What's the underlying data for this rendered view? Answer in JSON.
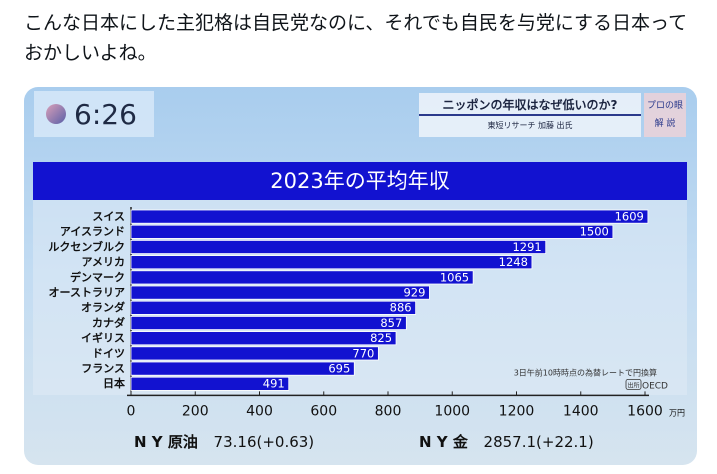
{
  "tweet": {
    "text": "こんな日本にした主犯格は自民党なのに、それでも自民を与党にする日本っておかしいよね。"
  },
  "tv": {
    "time": "6:26",
    "headline": "ニッポンの年収はなぜ低いのか?",
    "guest": "東短リサーチ 加藤 出氏",
    "badge_line1": "プロの眼",
    "badge_line2": "解 説",
    "note": "3日午前10時時点の為替レートで円換算",
    "source_label": "出所",
    "source": "OECD",
    "ticker_oil_label": "N Y 原油",
    "ticker_oil_value": "73.16(+0.63)",
    "ticker_gold_label": "N Y 金",
    "ticker_gold_value": "2857.1(+22.1)"
  },
  "chart_data": {
    "type": "bar",
    "orientation": "horizontal",
    "title": "2023年の平均年収",
    "unit": "万円",
    "categories": [
      "スイス",
      "アイスランド",
      "ルクセンブルク",
      "アメリカ",
      "デンマーク",
      "オーストラリア",
      "オランダ",
      "カナダ",
      "イギリス",
      "ドイツ",
      "フランス",
      "日本"
    ],
    "values": [
      1609,
      1500,
      1291,
      1248,
      1065,
      929,
      886,
      857,
      825,
      770,
      695,
      491
    ],
    "xlim": [
      0,
      1600
    ],
    "xticks": [
      0,
      200,
      400,
      600,
      800,
      1000,
      1200,
      1400,
      1600
    ],
    "bar_color": "#1212d0"
  }
}
